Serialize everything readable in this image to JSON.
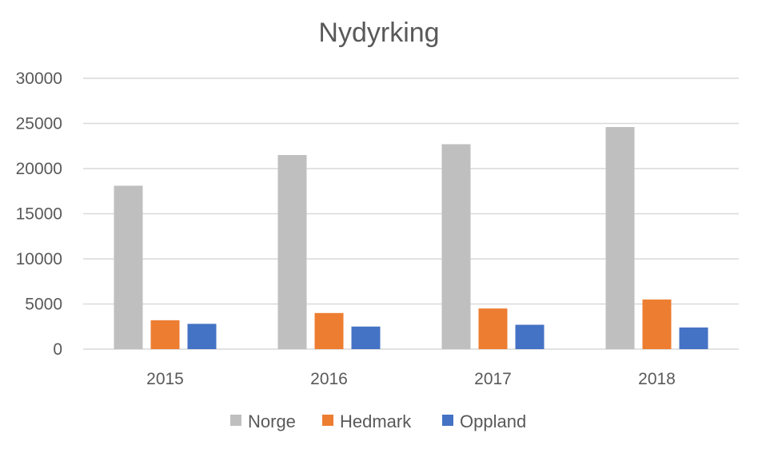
{
  "chart_data": {
    "type": "bar",
    "title": "Nydyrking",
    "xlabel": "",
    "ylabel": "",
    "categories": [
      "2015",
      "2016",
      "2017",
      "2018"
    ],
    "series": [
      {
        "name": "Norge",
        "color": "#bfbfbf",
        "values": [
          18100,
          21500,
          22700,
          24600
        ]
      },
      {
        "name": "Hedmark",
        "color": "#ed7d31",
        "values": [
          3200,
          4000,
          4500,
          5500
        ]
      },
      {
        "name": "Oppland",
        "color": "#4472c4",
        "values": [
          2800,
          2500,
          2700,
          2400
        ]
      }
    ],
    "ylim": [
      0,
      30000
    ],
    "yticks": [
      "0",
      "5000",
      "10000",
      "15000",
      "20000",
      "25000",
      "30000"
    ],
    "grid": true,
    "legend_position": "bottom"
  }
}
